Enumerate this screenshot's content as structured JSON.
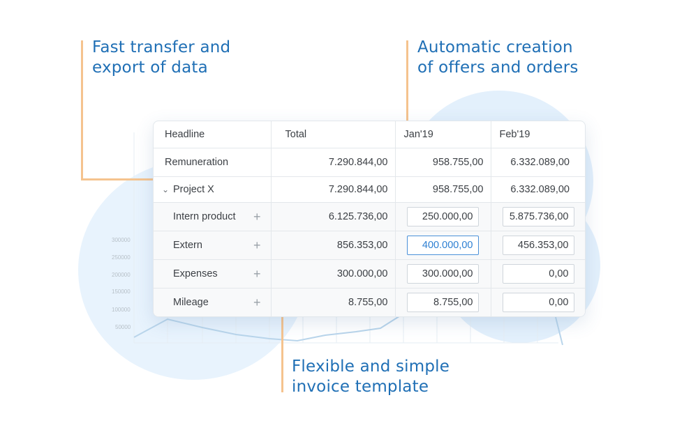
{
  "callouts": {
    "left": [
      "Fast transfer and",
      "export of data"
    ],
    "right": [
      "Automatic creation",
      "of offers and orders"
    ],
    "bottom": [
      "Flexible and simple",
      "invoice template"
    ]
  },
  "bg_chart": {
    "y_ticks": [
      "300000",
      "250000",
      "200000",
      "150000",
      "100000",
      "50000"
    ]
  },
  "colors": {
    "accent_text": "#1f6fb5",
    "callout_line": "#f5c38e",
    "focus_border": "#4a90d9",
    "blob": "#e3f0fc"
  },
  "table": {
    "headers": [
      "Headline",
      "Total",
      "Jan'19",
      "Feb'19"
    ],
    "rows": [
      {
        "label": "Remuneration",
        "total": "7.290.844,00",
        "jan": "958.755,00",
        "feb": "6.332.089,00"
      },
      {
        "label": "Project X",
        "total": "7.290.844,00",
        "jan": "958.755,00",
        "feb": "6.332.089,00"
      }
    ],
    "sub_rows": [
      {
        "label": "Intern product",
        "total": "6.125.736,00",
        "jan": "250.000,00",
        "feb": "5.875.736,00"
      },
      {
        "label": "Extern",
        "total": "856.353,00",
        "jan": "400.000,00",
        "feb": "456.353,00"
      },
      {
        "label": "Expenses",
        "total": "300.000,00",
        "jan": "300.000,00",
        "feb": "0,00"
      },
      {
        "label": "Mileage",
        "total": "8.755,00",
        "jan": "8.755,00",
        "feb": "0,00"
      }
    ]
  }
}
